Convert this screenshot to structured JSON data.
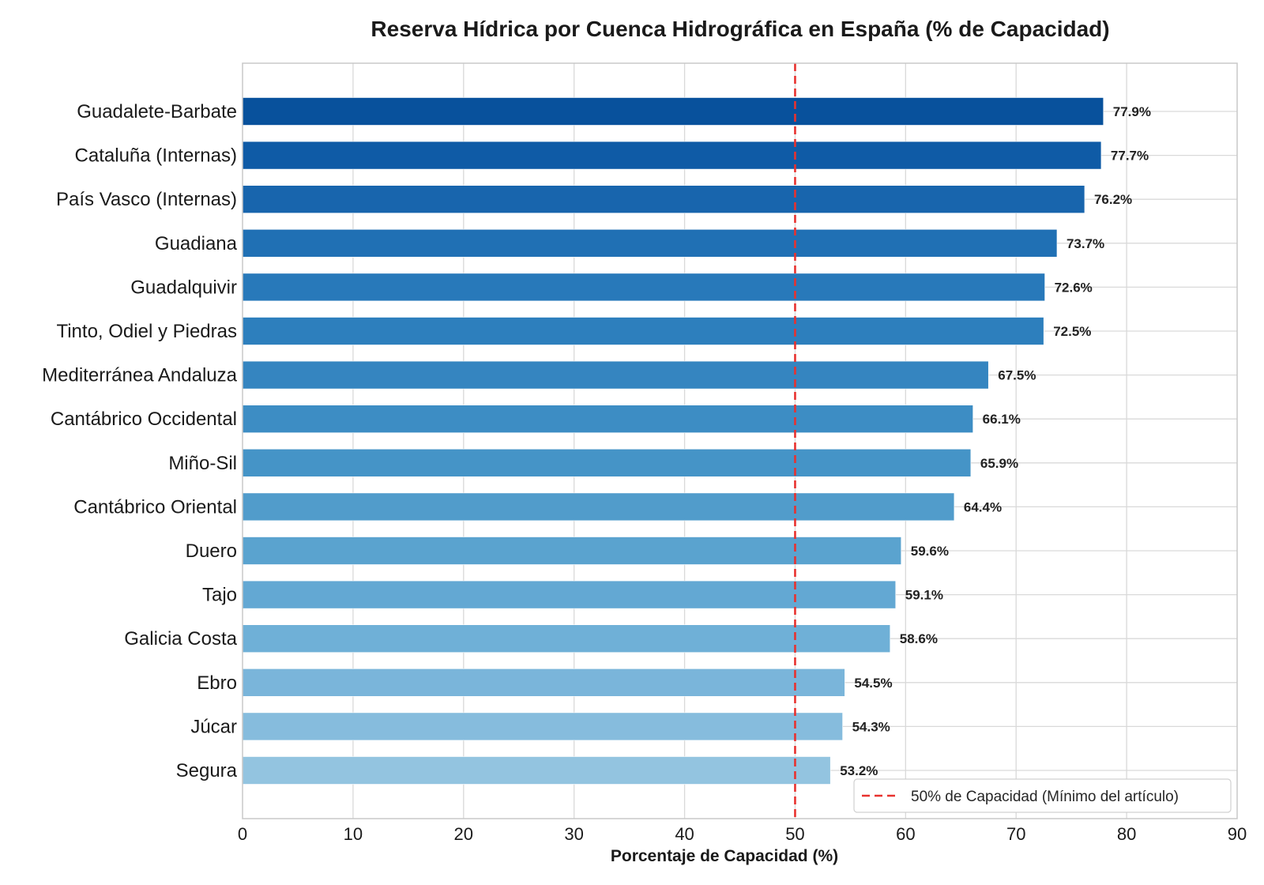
{
  "chart_data": {
    "type": "bar",
    "orientation": "horizontal",
    "title": "Reserva Hídrica por Cuenca Hidrográfica en España (% de Capacidad)",
    "xlabel": "Porcentaje de Capacidad (%)",
    "ylabel": "",
    "xlim": [
      0,
      90
    ],
    "xticks": [
      "0",
      "10",
      "20",
      "30",
      "40",
      "50",
      "60",
      "70",
      "80",
      "90"
    ],
    "grid": true,
    "legend_position": "bottom-right",
    "categories": [
      "Guadalete-Barbate",
      "Cataluña (Internas)",
      "País Vasco (Internas)",
      "Guadiana",
      "Guadalquivir",
      "Tinto, Odiel y Piedras",
      "Mediterránea Andaluza",
      "Cantábrico Occidental",
      "Miño-Sil",
      "Cantábrico Oriental",
      "Duero",
      "Tajo",
      "Galicia Costa",
      "Ebro",
      "Júcar",
      "Segura"
    ],
    "values": [
      77.9,
      77.7,
      76.2,
      73.7,
      72.6,
      72.5,
      67.5,
      66.1,
      65.9,
      64.4,
      59.6,
      59.1,
      58.6,
      54.5,
      54.3,
      53.2
    ],
    "value_labels": [
      "77.9%",
      "77.7%",
      "76.2%",
      "73.7%",
      "72.6%",
      "72.5%",
      "67.5%",
      "66.1%",
      "65.9%",
      "64.4%",
      "59.6%",
      "59.1%",
      "58.6%",
      "54.5%",
      "54.3%",
      "53.2%"
    ],
    "bar_colors": [
      "#08519c",
      "#0f5ba6",
      "#1865ad",
      "#2070b4",
      "#2879ba",
      "#2d7fbd",
      "#3585c0",
      "#3d8dc4",
      "#4594c7",
      "#519ccb",
      "#5aa3cf",
      "#63a8d3",
      "#6fb0d7",
      "#7ab5da",
      "#86bcdd",
      "#93c4e0"
    ],
    "reference_line": {
      "value": 50,
      "label": "50% de Capacidad (Mínimo del artículo)",
      "color": "#e8322f",
      "style": "dashed"
    }
  }
}
